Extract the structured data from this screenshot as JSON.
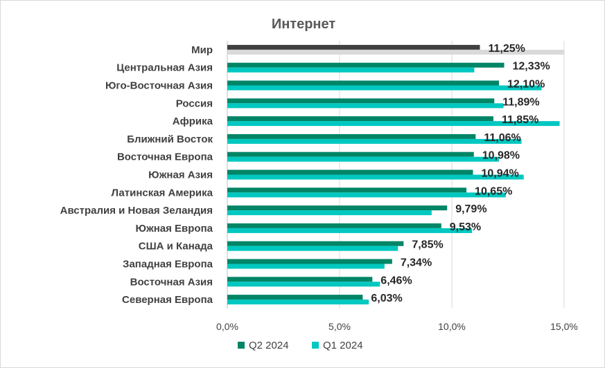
{
  "chart_data": {
    "type": "bar",
    "orientation": "horizontal",
    "title": "Интернет",
    "categories": [
      "Мир",
      "Центральная Азия",
      "Юго-Восточная Азия",
      "Россия",
      "Африка",
      "Ближний Восток",
      "Восточная Европа",
      "Южная Азия",
      "Латинская Америка",
      "Австралия и Новая Зеландия",
      "Южная Европа",
      "США и Канада",
      "Западная Европа",
      "Восточная Азия",
      "Северная Европа"
    ],
    "series": [
      {
        "name": "Q2 2024",
        "values": [
          11.25,
          12.33,
          12.1,
          11.89,
          11.85,
          11.06,
          10.98,
          10.94,
          10.65,
          9.79,
          9.53,
          7.85,
          7.34,
          6.46,
          6.03
        ],
        "labels": [
          "11,25%",
          "12,33%",
          "12,10%",
          "11,89%",
          "11,85%",
          "11,06%",
          "10,98%",
          "10,94%",
          "10,65%",
          "9,79%",
          "9,53%",
          "7,85%",
          "7,34%",
          "6,46%",
          "6,03%"
        ],
        "color": "#008566",
        "highlight_color": "#404040"
      },
      {
        "name": "Q1 2024",
        "values": [
          null,
          11.0,
          14.0,
          12.3,
          14.8,
          13.1,
          12.1,
          13.2,
          12.4,
          9.1,
          10.9,
          7.6,
          7.0,
          6.8,
          6.3
        ],
        "color": "#00c8c0",
        "highlight_color": "#d9d9d9"
      }
    ],
    "highlight_category": "Мир",
    "xlim": [
      0,
      15
    ],
    "xticks": [
      0,
      5,
      10,
      15
    ],
    "xtick_labels": [
      "0,0%",
      "5,0%",
      "10,0%",
      "15,0%"
    ],
    "grid": "vertical",
    "legend_position": "bottom"
  }
}
